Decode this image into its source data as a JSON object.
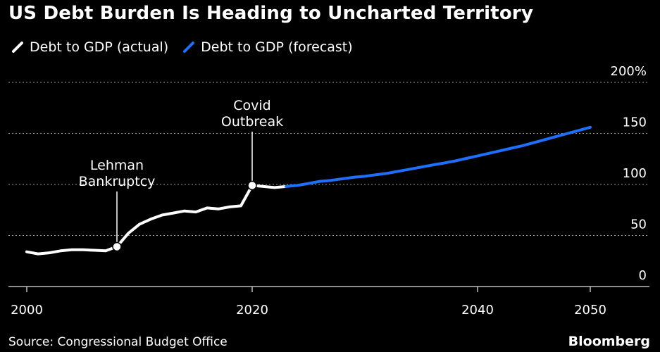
{
  "title": "US Debt Burden Is Heading to Uncharted Territory",
  "legend": [
    {
      "label": "Debt to GDP (actual)",
      "color": "#ffffff"
    },
    {
      "label": "Debt to GDP (forecast)",
      "color": "#1f6fff"
    }
  ],
  "source": "Source: Congressional Budget Office",
  "brand": "Bloomberg",
  "chart_data": {
    "type": "line",
    "xlim": [
      1999,
      2055
    ],
    "ylim": [
      -10,
      200
    ],
    "x_ticks": [
      2000,
      2020,
      2040,
      2050
    ],
    "y_ticks": [
      0,
      50,
      100,
      150,
      200
    ],
    "y_tick_labels": [
      "0",
      "50",
      "100",
      "150",
      "200%"
    ],
    "grid": true,
    "legend_position": "top-left",
    "series": [
      {
        "name": "Debt to GDP (actual)",
        "color": "#ffffff",
        "x": [
          2000,
          2001,
          2002,
          2003,
          2004,
          2005,
          2006,
          2007,
          2008,
          2009,
          2010,
          2011,
          2012,
          2013,
          2014,
          2015,
          2016,
          2017,
          2018,
          2019,
          2020,
          2021,
          2022,
          2023
        ],
        "y": [
          34,
          32,
          33,
          35,
          36,
          36,
          35.5,
          35,
          39,
          52,
          61,
          66,
          70,
          72,
          74,
          73,
          77,
          76,
          78,
          79,
          99,
          98,
          97,
          98
        ]
      },
      {
        "name": "Debt to GDP (forecast)",
        "color": "#1f6fff",
        "x": [
          2023,
          2024,
          2025,
          2026,
          2027,
          2028,
          2029,
          2030,
          2031,
          2032,
          2033,
          2034,
          2035,
          2036,
          2037,
          2038,
          2039,
          2040,
          2041,
          2042,
          2043,
          2044,
          2045,
          2046,
          2047,
          2048,
          2049,
          2050
        ],
        "y": [
          98,
          99,
          101,
          103,
          104,
          105.5,
          107,
          108,
          109.5,
          111,
          113,
          115,
          117,
          119,
          121,
          123,
          125.5,
          128,
          130.5,
          133,
          135.5,
          138,
          141,
          144,
          147,
          150,
          153,
          156
        ]
      }
    ],
    "annotations": [
      {
        "x": 2008,
        "y": 39,
        "lines": [
          "Lehman",
          "Bankruptcy"
        ]
      },
      {
        "x": 2020,
        "y": 99,
        "lines": [
          "Covid",
          "Outbreak"
        ]
      }
    ]
  }
}
